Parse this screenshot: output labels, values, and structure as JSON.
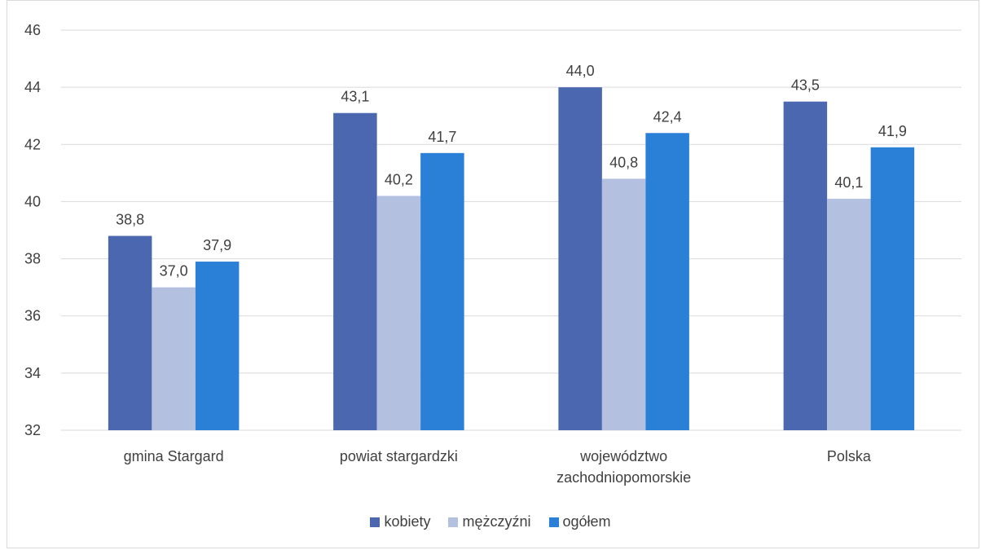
{
  "chart_data": {
    "type": "bar",
    "title": "",
    "xlabel": "",
    "ylabel": "",
    "ylim": [
      32,
      46
    ],
    "yticks": [
      32,
      34,
      36,
      38,
      40,
      42,
      44,
      46
    ],
    "ytick_labels": [
      "32",
      "34",
      "36",
      "38",
      "40",
      "42",
      "44",
      "46"
    ],
    "grid": true,
    "legend": "bottom",
    "categories": [
      [
        "gmina Stargard"
      ],
      [
        "powiat stargardzki"
      ],
      [
        "województwo",
        "zachodniopomorskie"
      ],
      [
        "Polska"
      ]
    ],
    "series": [
      {
        "name": "kobiety",
        "color": "#4a67b0",
        "values": [
          38.8,
          43.1,
          44.0,
          43.5
        ],
        "labels": [
          "38,8",
          "43,1",
          "44,0",
          "43,5"
        ]
      },
      {
        "name": "mężczyźni",
        "color": "#b4c0e0",
        "values": [
          37.0,
          40.2,
          40.8,
          40.1
        ],
        "labels": [
          "37,0",
          "40,2",
          "40,8",
          "40,1"
        ]
      },
      {
        "name": "ogółem",
        "color": "#2a7fd6",
        "values": [
          37.9,
          41.7,
          42.4,
          41.9
        ],
        "labels": [
          "37,9",
          "41,7",
          "42,4",
          "41,9"
        ]
      }
    ]
  }
}
